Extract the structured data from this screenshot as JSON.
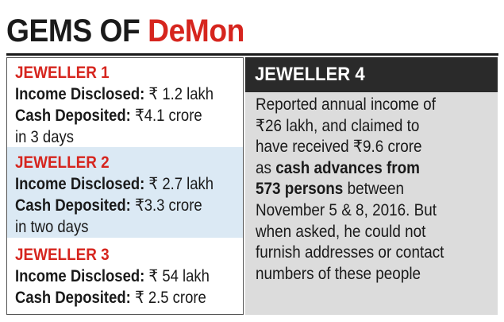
{
  "headline": {
    "lead": "GEMS OF ",
    "accent": "DeMon"
  },
  "left": {
    "entries": [
      {
        "title": "JEWELLER 1",
        "income_label": "Income Disclosed:",
        "income_value": " ₹ 1.2 lakh",
        "cash_label": "Cash Deposited:",
        "cash_value": " ₹4.1 crore",
        "duration": "in 3 days"
      },
      {
        "title": "JEWELLER 2",
        "income_label": "Income Disclosed:",
        "income_value": " ₹ 2.7 lakh",
        "cash_label": "Cash Deposited:",
        "cash_value": " ₹3.3 crore",
        "duration": "in two days"
      },
      {
        "title": "JEWELLER 3",
        "income_label": "Income Disclosed:",
        "income_value": " ₹ 54 lakh",
        "cash_label": "Cash Deposited:",
        "cash_value": " ₹ 2.5 crore"
      }
    ]
  },
  "right": {
    "title": "JEWELLER 4",
    "lines": [
      {
        "text": "Reported annual income of"
      },
      {
        "text": "₹26 lakh, and claimed to"
      },
      {
        "text": "have received ₹9.6 crore"
      },
      {
        "pre": "as ",
        "bold": "cash advances from"
      },
      {
        "bold": "573 persons",
        "post": " between"
      },
      {
        "text": "November 5 & 8, 2016. But"
      },
      {
        "text": "when asked, he could not"
      },
      {
        "text": "furnish addresses or contact"
      },
      {
        "text": "numbers of these people"
      }
    ]
  },
  "colors": {
    "accent": "#d6251e",
    "highlight_band": "#dbe9f4",
    "panel_bg": "#dcdcdc",
    "header_bg": "#2a2a2a"
  }
}
